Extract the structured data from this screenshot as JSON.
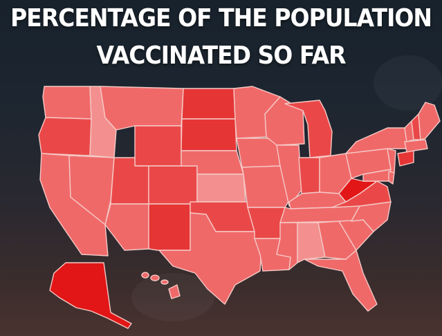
{
  "title": {
    "line1": "PERCENTAGE OF THE POPULATION",
    "line2": "VACCINATED SO FAR"
  },
  "colors": {
    "light": "#f3908f",
    "mid": "#f06969",
    "strong": "#ea4848",
    "darker": "#e63535",
    "darkest": "#e21616",
    "border": "#f4c9c6"
  },
  "map_data": {
    "type": "choropleth",
    "region": "United States",
    "legend": "none",
    "shading": {
      "WA": "mid",
      "OR": "strong",
      "CA": "mid",
      "NV": "mid",
      "ID": "light",
      "MT": "mid",
      "WY": "strong",
      "UT": "strong",
      "AZ": "mid",
      "CO": "strong",
      "NM": "darker",
      "ND": "darker",
      "SD": "darker",
      "NE": "mid",
      "KS": "light",
      "OK": "strong",
      "TX": "mid",
      "MN": "mid",
      "IA": "mid",
      "MO": "mid",
      "AR": "strong",
      "LA": "mid",
      "WI": "mid",
      "IL": "mid",
      "MI": "strong",
      "IN": "strong",
      "OH": "mid",
      "KY": "mid",
      "TN": "mid",
      "MS": "mid",
      "AL": "light",
      "GA": "mid",
      "FL": "mid",
      "SC": "mid",
      "NC": "mid",
      "VA": "strong",
      "WV": "darkest",
      "PA": "mid",
      "NY": "mid",
      "ME": "mid",
      "NH": "strong",
      "VT": "mid",
      "MA": "mid",
      "CT": "darker",
      "NJ": "mid",
      "DE": "mid",
      "MD": "mid",
      "AK": "darkest",
      "HI": "mid"
    }
  }
}
